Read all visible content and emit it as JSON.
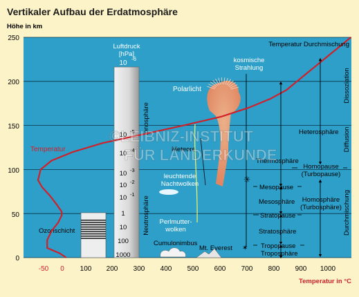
{
  "title": "Vertikaler Aufbau der Erdatmosphäre",
  "y_axis_label": "Höhe in km",
  "x_axis_label": "Temperatur in °C",
  "y_ticks": [
    "250",
    "200",
    "150",
    "100",
    "50",
    "0"
  ],
  "x_ticks_temperature": [
    "-50",
    "0"
  ],
  "x_ticks_black": [
    "100",
    "200",
    "300",
    "400",
    "500",
    "600",
    "700",
    "800",
    "900",
    "1000"
  ],
  "watermark": {
    "line1": "©LEIBNIZ-INSTITUT",
    "line2": "FÜR LÄNDERKUNDE"
  },
  "colors": {
    "background": "#fdf3c8",
    "plot": "#2d9fc9",
    "curve": "#d0202a",
    "grid": "#000000"
  },
  "pressure_column": {
    "title_lines": [
      "Luftdruck",
      "[hPa]"
    ],
    "top_value": "10",
    "top_exp": "-6",
    "labels": [
      {
        "base": "10",
        "exp": "-5"
      },
      {
        "base": "10",
        "exp": "-4"
      },
      {
        "base": "10",
        "exp": "-3"
      },
      {
        "base": "10",
        "exp": "-2"
      },
      {
        "base": "10",
        "exp": "-1"
      },
      {
        "base": "1",
        "exp": ""
      },
      {
        "base": "10",
        "exp": ""
      },
      {
        "base": "100",
        "exp": ""
      },
      {
        "base": "1000",
        "exp": ""
      }
    ]
  },
  "labels": {
    "temperature_curve": "Temperatur",
    "temperature_mixing": "Temperatur Durchmischung",
    "ozone": "Ozonschicht",
    "aurora": "Polarlicht",
    "cosmic_radiation": [
      "kosmische",
      "Strahlung"
    ],
    "meteors": "Meteore",
    "noctilucent": [
      "leuchtende",
      "Nachtwolken"
    ],
    "nacreous": [
      "Perlmutter-",
      "wolken"
    ],
    "cumulonimbus": "Cumulonimbus",
    "everest": "Mt. Everest",
    "ionosphere": "Ionosphäre",
    "neutrosphere": "Neutrosphäre",
    "thermosphere": "Thermosphäre",
    "mesopause": "Mesopause",
    "mesosphere": "Mesosphäre",
    "stratopause": "Stratopause",
    "stratosphere": "Stratosphäre",
    "tropopause": "Tropopause",
    "troposphere": "Troposphäre",
    "heterosphere": "Heterosphäre",
    "homopause": [
      "Homopause",
      "(Turbopause)"
    ],
    "homosphere": [
      "Homosphäre",
      "(Turbosphäre)"
    ],
    "dissociation": "Dissoziation",
    "diffusion": "Diffusion",
    "mixing": "Durchmischung"
  },
  "chart_data": {
    "type": "line",
    "title": "Vertikaler Aufbau der Erdatmosphäre",
    "xlabel": "Temperatur in °C",
    "ylabel": "Höhe in km",
    "ylim": [
      0,
      250
    ],
    "series": [
      {
        "name": "Temperatur",
        "points": [
          [
            15,
            0
          ],
          [
            -10,
            5
          ],
          [
            -56,
            11
          ],
          [
            -56,
            20
          ],
          [
            -40,
            30
          ],
          [
            -15,
            40
          ],
          [
            -2,
            48
          ],
          [
            -2,
            52
          ],
          [
            -20,
            60
          ],
          [
            -45,
            70
          ],
          [
            -75,
            80
          ],
          [
            -90,
            88
          ],
          [
            -80,
            100
          ],
          [
            -40,
            110
          ],
          [
            40,
            120
          ],
          [
            150,
            130
          ],
          [
            300,
            140
          ],
          [
            450,
            150
          ],
          [
            590,
            160
          ],
          [
            690,
            170
          ],
          [
            770,
            180
          ],
          [
            830,
            190
          ],
          [
            870,
            200
          ],
          [
            910,
            210
          ],
          [
            950,
            220
          ],
          [
            990,
            230
          ],
          [
            1030,
            240
          ],
          [
            1070,
            250
          ]
        ]
      }
    ]
  }
}
